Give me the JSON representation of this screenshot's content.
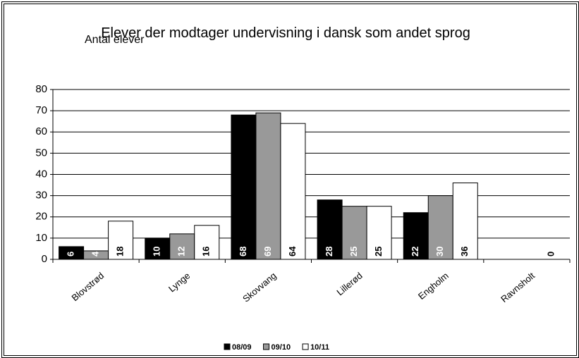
{
  "chart_data": {
    "type": "bar",
    "title": "Elever der modtager undervisning i dansk som andet sprog",
    "y_axis_title": "Antal elever",
    "categories": [
      "Blovstrød",
      "Lynge",
      "Skovvang",
      "Lillerød",
      "Engholm",
      "Ravnsholt"
    ],
    "series": [
      {
        "name": "08/09",
        "color": "#000000",
        "values": [
          6,
          10,
          68,
          28,
          22,
          null
        ]
      },
      {
        "name": "09/10",
        "color": "#999999",
        "values": [
          4,
          12,
          69,
          25,
          30,
          0
        ]
      },
      {
        "name": "10/11",
        "color": "#ffffff",
        "values": [
          18,
          16,
          64,
          25,
          36,
          0
        ]
      }
    ],
    "ylim": [
      0,
      80
    ],
    "yticks": [
      0,
      10,
      20,
      30,
      40,
      50,
      60,
      70,
      80
    ],
    "grid": true,
    "legend": "bottom"
  }
}
